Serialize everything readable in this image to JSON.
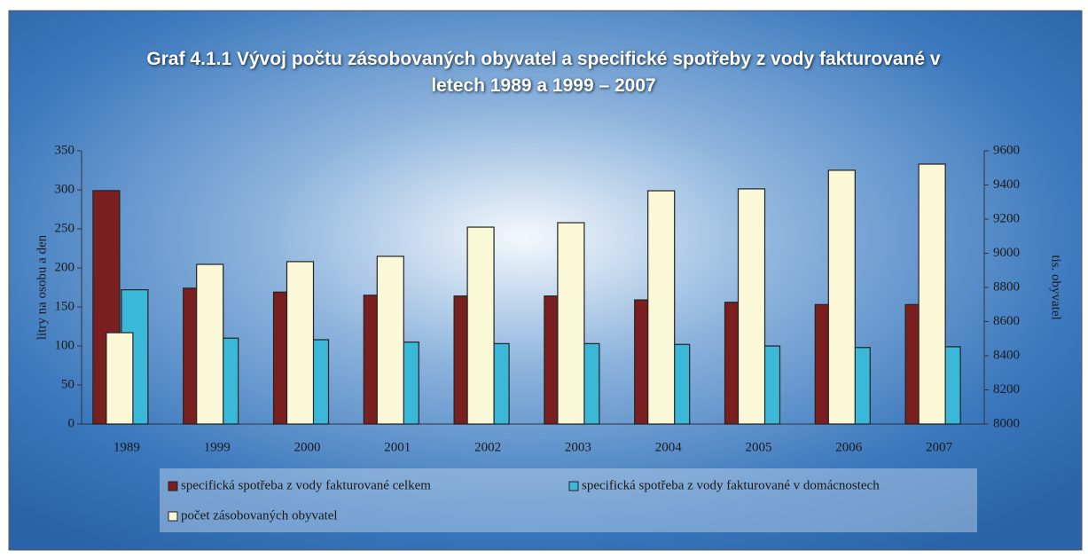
{
  "chart_data": {
    "type": "bar",
    "title": "Graf 4.1.1 Vývoj počtu zásobovaných obyvatel a specifické spotřeby z vody fakturované v letech 1989 a 1999 – 2007",
    "y_label": "litry na osobu a den",
    "y2_label": "tis. obyvatel",
    "categories": [
      "1989",
      "1999",
      "2000",
      "2001",
      "2002",
      "2003",
      "2004",
      "2005",
      "2006",
      "2007"
    ],
    "series": [
      {
        "name": "specifická spotřeba z vody fakturované celkem",
        "color": "#7a1f1f",
        "values": [
          299,
          174,
          169,
          165,
          164,
          164,
          159,
          156,
          153,
          153
        ]
      },
      {
        "name": "specifická spotřeba z vody fakturované v domácnostech",
        "color": "#3bb8d8",
        "values": [
          172,
          110,
          108,
          105,
          103,
          103,
          102,
          100,
          98,
          99
        ]
      },
      {
        "name": "počet zásobovaných obyvatel",
        "color": "#fbf8d8",
        "axis": "y2",
        "values": [
          8535,
          8935,
          8951,
          8982,
          9153,
          9179,
          9366,
          9377,
          9486,
          9522
        ]
      }
    ],
    "ylim": [
      0,
      350
    ],
    "yticks": [
      0,
      50,
      100,
      150,
      200,
      250,
      300,
      350
    ],
    "y2lim": [
      8000,
      9600
    ],
    "y2ticks": [
      8000,
      8200,
      8400,
      8600,
      8800,
      9000,
      9200,
      9400,
      9600
    ]
  }
}
